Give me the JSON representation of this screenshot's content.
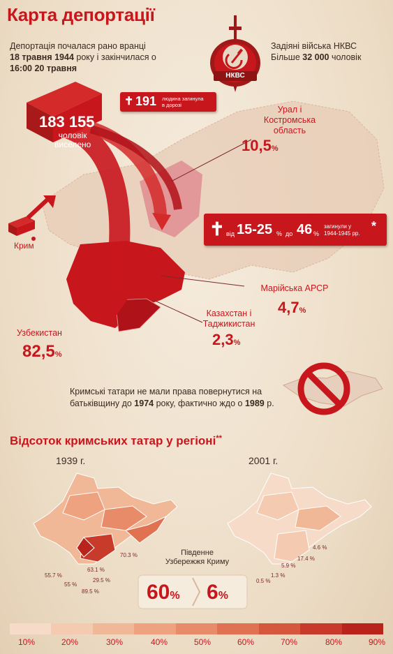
{
  "title": "Карта депортації",
  "intro": {
    "line1": "Депортація почалася рано вранці",
    "date_start": "18 травня 1944",
    "line2_rest": " року і закінчилася о",
    "date_end": "16:00 20 травня"
  },
  "nkvd": {
    "emblem_text": "НКВС",
    "line1": "Задіяні війська НКВС",
    "line2_prefix": "Більше ",
    "line2_count": "32 000",
    "line2_suffix": " чоловік"
  },
  "deported": {
    "count": "183 155",
    "line1": "чоловік",
    "line2": "виселено"
  },
  "died_on_road": {
    "count": "191",
    "caption_line1": "людина загинула",
    "caption_line2": "в дорозі"
  },
  "died_later": {
    "from_word": "від",
    "range": "15-25",
    "pct1": "%",
    "to_word": "до",
    "upper": "46",
    "pct2": "%",
    "caption_line1": "загинули у",
    "caption_line2": "1944-1945 рр.",
    "asterisk": "*"
  },
  "origin": "Крим",
  "regions": [
    {
      "name_line1": "Урал і",
      "name_line2": "Костромська",
      "name_line3": "область",
      "value": "10,5",
      "unit": "%"
    },
    {
      "name_line1": "Марійська АРСР",
      "value": "4,7",
      "unit": "%"
    },
    {
      "name_line1": "Казахстан і",
      "name_line2": "Таджикистан",
      "value": "2,3",
      "unit": "%"
    },
    {
      "name_line1": "Узбекистан",
      "value": "82,5",
      "unit": "%"
    }
  ],
  "return_note": {
    "line1": "Кримські татари не мали права повернутися на",
    "line2_prefix": "батьківщину до ",
    "year1": "1974",
    "line2_mid": " року, фактично ждо о ",
    "year2": "1989",
    "line2_suffix": " р."
  },
  "section2": {
    "title": "Відсоток кримських татар у регіоні",
    "asterisks": "**",
    "year_left": "1939 г.",
    "year_right": "2001 г.",
    "map1939_labels": [
      "70.3 %",
      "63.1 %",
      "55.7 %",
      "55 %",
      "29.5 %",
      "89.5 %"
    ],
    "map2001_labels": [
      "4.6 %",
      "17.4 %",
      "5.9 %",
      "0.5 %",
      "1.3 %"
    ],
    "coast_line1": "Південне",
    "coast_line2": "Узбережжя Криму",
    "coast_1939": "60",
    "coast_2001": "6",
    "pct": "%"
  },
  "legend": {
    "labels": [
      "10%",
      "20%",
      "30%",
      "40%",
      "50%",
      "60%",
      "70%",
      "80%",
      "90%"
    ],
    "colors": [
      "#f6dcc8",
      "#f4cbb0",
      "#f1b897",
      "#eea27f",
      "#e88b68",
      "#e07252",
      "#d5573c",
      "#c83b2a",
      "#b8231c"
    ]
  },
  "colors": {
    "accent": "#c8161d",
    "background": "#f0e2cf"
  }
}
